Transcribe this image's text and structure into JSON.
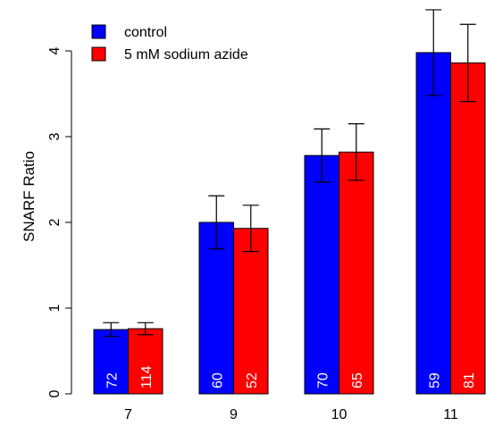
{
  "chart_data": {
    "type": "bar",
    "title": "",
    "xlabel": "",
    "ylabel": "SNARF Ratio",
    "ylim": [
      0,
      4.2
    ],
    "yticks": [
      "0",
      "1",
      "2",
      "3",
      "4"
    ],
    "categories": [
      "7",
      "9",
      "10",
      "11"
    ],
    "series": [
      {
        "name": "control",
        "color": "#0000ff",
        "values": [
          0.75,
          2.0,
          2.78,
          3.98
        ],
        "error": [
          0.08,
          0.31,
          0.31,
          0.5
        ],
        "counts": [
          "72",
          "60",
          "70",
          "59"
        ]
      },
      {
        "name": "5 mM sodium azide",
        "color": "#ff0000",
        "values": [
          0.76,
          1.93,
          2.82,
          3.86
        ],
        "error": [
          0.07,
          0.27,
          0.33,
          0.45
        ],
        "counts": [
          "114",
          "52",
          "65",
          "81"
        ]
      }
    ],
    "legend_position": "top-left",
    "grid": false
  }
}
